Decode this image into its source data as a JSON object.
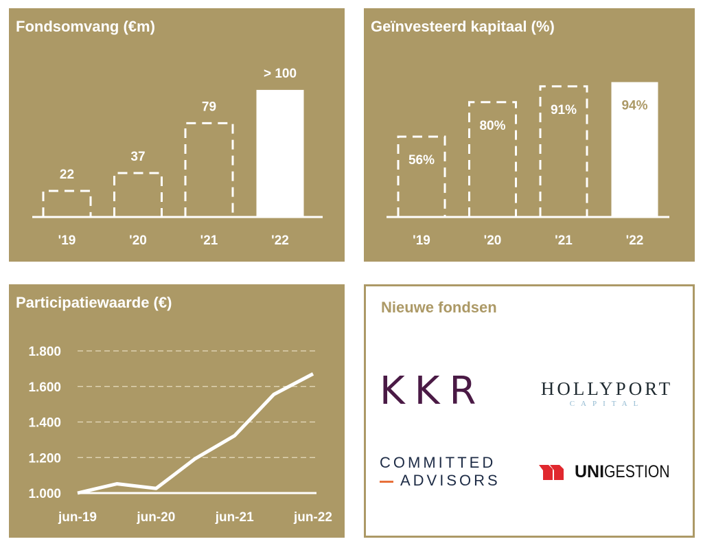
{
  "colors": {
    "panel": "#ac9966",
    "mark": "#ffffff",
    "kkr": "#4a1a45",
    "hollyport": "#1f2a30",
    "hollyport_sub": "#8fb8d0",
    "committed": "#1d2b45",
    "committed_dash": "#e8703a",
    "unigestion_red": "#e0282e"
  },
  "chart_data": [
    {
      "type": "bar",
      "title": "Fondsomvang (€m)",
      "categories": [
        "'19",
        "'20",
        "'21",
        "'22"
      ],
      "values": [
        22,
        37,
        79,
        107
      ],
      "labels": [
        "22",
        "37",
        "79",
        "> 100"
      ],
      "styles": [
        "dashed",
        "dashed",
        "dashed",
        "solid"
      ]
    },
    {
      "type": "bar",
      "title": "Geïnvesteerd kapitaal (%)",
      "categories": [
        "'19",
        "'20",
        "'21",
        "'22"
      ],
      "values": [
        56,
        80,
        91,
        94
      ],
      "labels": [
        "56%",
        "80%",
        "91%",
        "94%"
      ],
      "styles": [
        "dashed",
        "dashed",
        "dashed",
        "solid"
      ]
    },
    {
      "type": "line",
      "title": "Participatiewaarde (€)",
      "x": [
        "jun-19",
        "dec-19",
        "jun-20",
        "dec-20",
        "jun-21",
        "dec-21",
        "jun-22"
      ],
      "values": [
        1000,
        1052,
        1026,
        1194,
        1323,
        1555,
        1671
      ],
      "xticks": [
        "jun-19",
        "jun-20",
        "jun-21",
        "jun-22"
      ],
      "yticks": [
        "1.000",
        "1.200",
        "1.400",
        "1.600",
        "1.800"
      ],
      "ytick_values": [
        1000,
        1200,
        1400,
        1600,
        1800
      ],
      "ylim": [
        1000,
        1800
      ],
      "grid": "dashed-horizontal"
    }
  ],
  "funds": {
    "title": "Nieuwe fondsen",
    "kkr": "KKR",
    "hollyport": "HOLLYPORT",
    "hollyport_sub": "CAPITAL",
    "committed_1": "COMMITTED",
    "committed_2": "ADVISORS",
    "uni_bold": "UNI",
    "uni_rest": "GESTION"
  }
}
